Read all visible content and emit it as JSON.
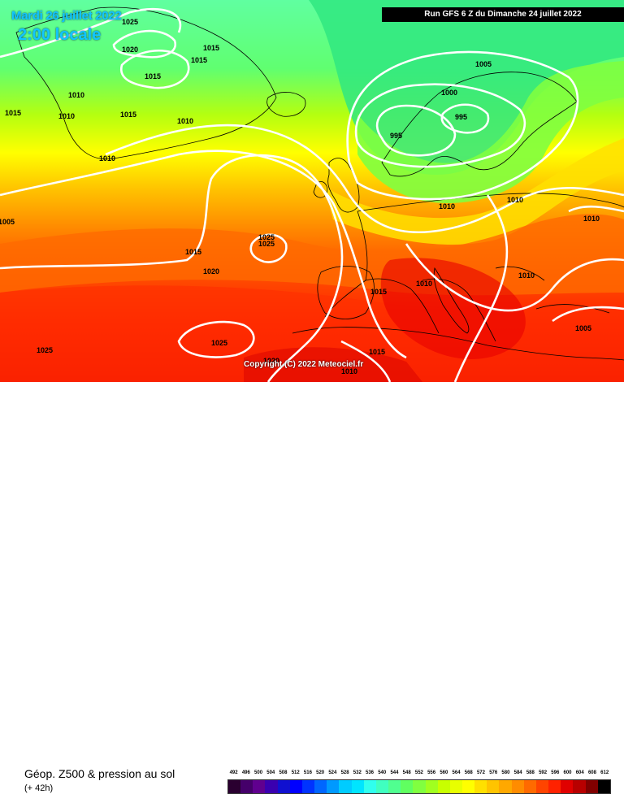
{
  "header": {
    "date": "Mardi 26 juillet 2022",
    "time": "2:00 locale",
    "run": "Run GFS 6 Z du Dimanche 24 juillet 2022"
  },
  "copyright": "Copyright (C) 2022 Meteociel.fr",
  "footer": {
    "product": "Géop. Z500 & pression au sol",
    "lead": "(+ 42h)"
  },
  "legend": {
    "values": [
      "492",
      "496",
      "500",
      "504",
      "508",
      "512",
      "516",
      "520",
      "524",
      "528",
      "532",
      "536",
      "540",
      "544",
      "548",
      "552",
      "556",
      "560",
      "564",
      "568",
      "572",
      "576",
      "580",
      "584",
      "588",
      "592",
      "596",
      "600",
      "604",
      "608",
      "612"
    ],
    "colors": [
      "#2a0030",
      "#45006a",
      "#60008f",
      "#3a00b0",
      "#1010d0",
      "#0000ff",
      "#0033ff",
      "#0066ff",
      "#0099ff",
      "#00ccff",
      "#00e5ff",
      "#30ffee",
      "#40ffc0",
      "#50ff90",
      "#60ff60",
      "#80ff40",
      "#a0ff20",
      "#c8ff00",
      "#e8ff00",
      "#ffff00",
      "#ffe000",
      "#ffc400",
      "#ffa800",
      "#ff8c00",
      "#ff6a00",
      "#ff4400",
      "#ff2200",
      "#e00000",
      "#b80000",
      "#800000",
      "#000000"
    ]
  },
  "pressure_labels": [
    {
      "text": "1025",
      "region": "greenland-north"
    },
    {
      "text": "1020",
      "region": "greenland"
    },
    {
      "text": "1015",
      "region": "greenland-east"
    },
    {
      "text": "1015",
      "region": "greenland-east-2"
    },
    {
      "text": "1015",
      "region": "greenland-center"
    },
    {
      "text": "1010",
      "region": "greenland-west"
    },
    {
      "text": "1010",
      "region": "greenland-south"
    },
    {
      "text": "1015",
      "region": "greenland-southeast"
    },
    {
      "text": "1010",
      "region": "iceland"
    },
    {
      "text": "1015",
      "region": "labrador-sea"
    },
    {
      "text": "1010",
      "region": "north-atlantic"
    },
    {
      "text": "1005",
      "region": "newfoundland"
    },
    {
      "text": "1005",
      "region": "norway-north"
    },
    {
      "text": "1000",
      "region": "norwegian-sea"
    },
    {
      "text": "995",
      "region": "north-sea-low"
    },
    {
      "text": "995",
      "region": "scandinavia-low"
    },
    {
      "text": "1010",
      "region": "north-germany"
    },
    {
      "text": "1010",
      "region": "poland"
    },
    {
      "text": "1010",
      "region": "russia-west"
    },
    {
      "text": "1025",
      "region": "azores-high-1"
    },
    {
      "text": "1025",
      "region": "azores-high-2"
    },
    {
      "text": "1015",
      "region": "mid-atlantic"
    },
    {
      "text": "1020",
      "region": "mid-atlantic-south"
    },
    {
      "text": "1015",
      "region": "iberia"
    },
    {
      "text": "1010",
      "region": "alps"
    },
    {
      "text": "1010",
      "region": "balkans"
    },
    {
      "text": "1005",
      "region": "black-sea"
    },
    {
      "text": "1025",
      "region": "subtropical-high"
    },
    {
      "text": "1025",
      "region": "west-africa"
    },
    {
      "text": "1020",
      "region": "morocco"
    },
    {
      "text": "1015",
      "region": "algeria"
    },
    {
      "text": "1010",
      "region": "sahara"
    }
  ]
}
